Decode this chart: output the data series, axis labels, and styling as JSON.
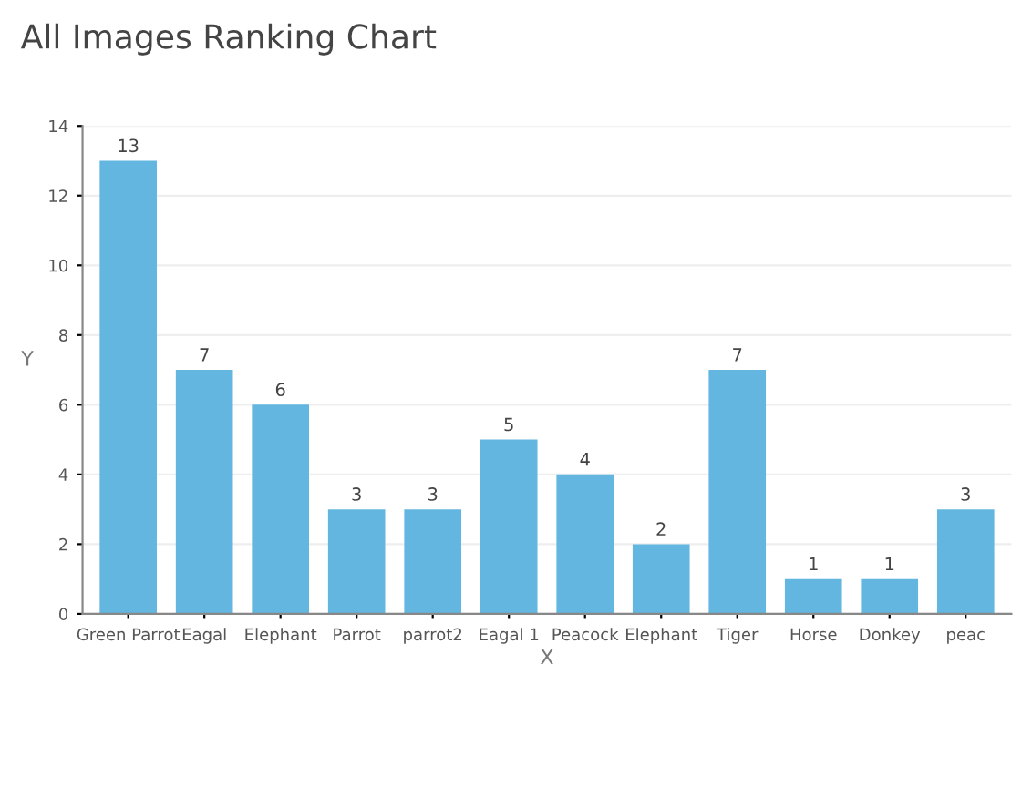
{
  "chart_data": {
    "type": "bar",
    "title": "All Images Ranking Chart",
    "xlabel": "X",
    "ylabel": "Y",
    "categories": [
      "Green Parrot",
      "Eagal",
      "Elephant",
      "Parrot",
      "parrot2",
      "Eagal 1",
      "Peacock",
      "Elephant",
      "Tiger",
      "Horse",
      "Donkey",
      "peac"
    ],
    "values": [
      13,
      7,
      6,
      3,
      3,
      5,
      4,
      2,
      7,
      1,
      1,
      3
    ],
    "color": "#62b6e0",
    "ylim": [
      0,
      14
    ],
    "yticks": [
      0,
      2,
      4,
      6,
      8,
      10,
      12,
      14
    ],
    "grid": "y",
    "data_labels": true
  }
}
